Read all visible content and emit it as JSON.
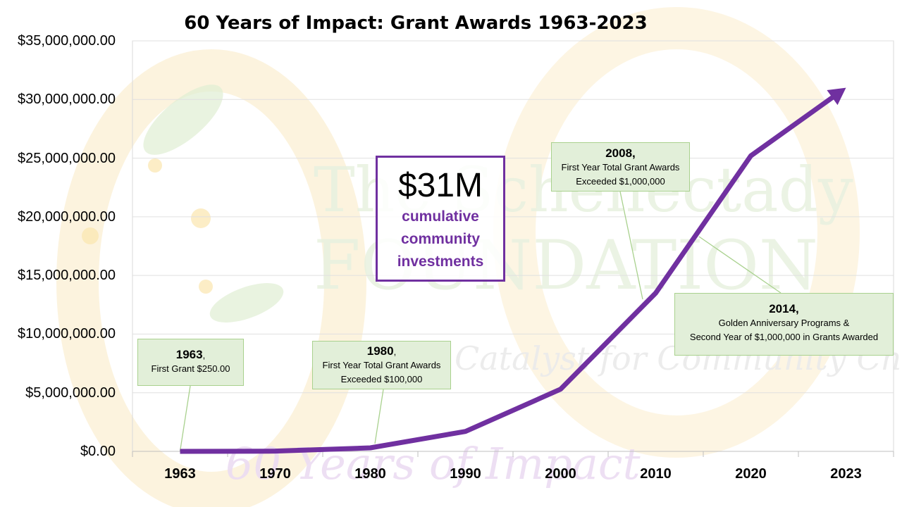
{
  "chart_data": {
    "type": "line",
    "title": "60 Years of Impact: Grant Awards 1963-2023",
    "categories": [
      "1963",
      "1970",
      "1980",
      "1990",
      "2000",
      "2010",
      "2020",
      "2023"
    ],
    "series": [
      {
        "values": [
          250,
          20000,
          300000,
          1700000,
          5300000,
          13500000,
          25200000,
          31000000
        ],
        "color": "#7030a0"
      }
    ],
    "y_ticks": [
      "$0.00",
      "$5,000,000.00",
      "$10,000,000.00",
      "$15,000,000.00",
      "$20,000,000.00",
      "$25,000,000.00",
      "$30,000,000.00",
      "$35,000,000.00"
    ],
    "ylim": [
      0,
      35000000
    ],
    "grid": "horizontal",
    "line_end": "arrow"
  },
  "highlight": {
    "amount": "$31M",
    "lines": [
      "cumulative",
      "community",
      "investments"
    ]
  },
  "annotations": [
    {
      "year": "1963",
      "suffix": ",",
      "lines": [
        "First Grant $250.00"
      ]
    },
    {
      "year": "1980",
      "suffix": ",",
      "lines": [
        "First Year Total Grant Awards",
        "Exceeded $100,000"
      ]
    },
    {
      "year": "2008,",
      "suffix": "",
      "lines": [
        "First Year Total Grant Awards",
        "Exceeded $1,000,000"
      ]
    },
    {
      "year": "2014,",
      "suffix": "",
      "lines": [
        "Golden Anniversary Programs &",
        "Second Year of $1,000,000 in Grants Awarded"
      ]
    }
  ],
  "background": {
    "logo_text": [
      "The Schenectady",
      "FOUNDATION",
      "Catalyst for Community Change",
      "60 Years of Impact"
    ],
    "colors": {
      "accent": "#7030a0",
      "callout_fill": "#e2efd9",
      "callout_border": "#a9d18e",
      "watermark_green": "#8dbf6a",
      "watermark_gold": "#f5d88a"
    }
  }
}
